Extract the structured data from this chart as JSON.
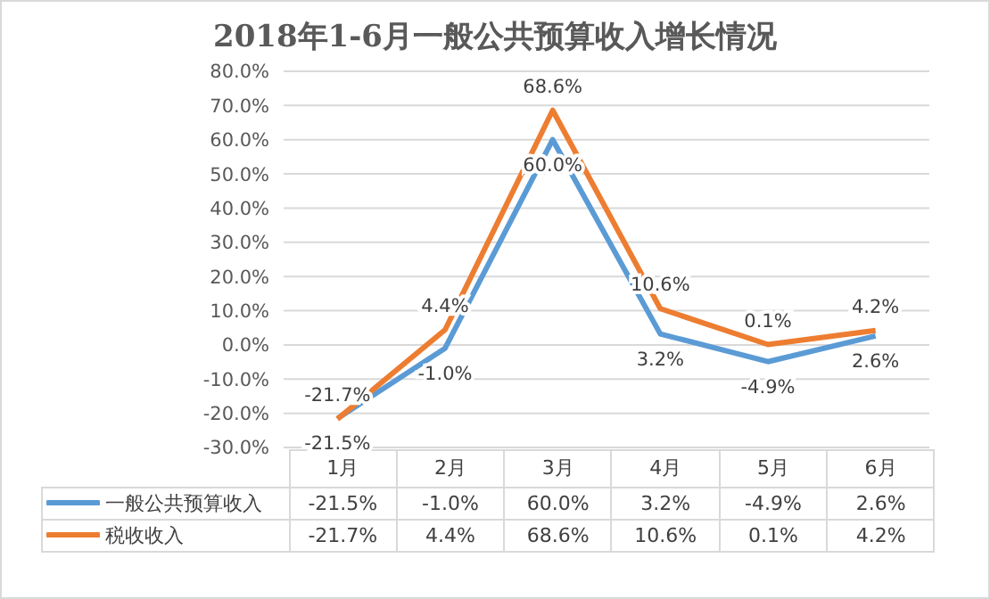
{
  "chart_data": {
    "type": "line",
    "title": "2018年1-6月一般公共预算收入增长情况",
    "categories": [
      "1月",
      "2月",
      "3月",
      "4月",
      "5月",
      "6月"
    ],
    "series": [
      {
        "name": "一般公共预算收入",
        "color": "#5b9bd5",
        "values": [
          -21.5,
          -1.0,
          60.0,
          3.2,
          -4.9,
          2.6
        ],
        "value_labels": [
          "-21.5%",
          "-1.0%",
          "60.0%",
          "3.2%",
          "-4.9%",
          "2.6%"
        ]
      },
      {
        "name": "税收收入",
        "color": "#ed7d31",
        "values": [
          -21.7,
          4.4,
          68.6,
          10.6,
          0.1,
          4.2
        ],
        "value_labels": [
          "-21.7%",
          "4.4%",
          "68.6%",
          "10.6%",
          "0.1%",
          "4.2%"
        ]
      }
    ],
    "ylim": [
      -30,
      80
    ],
    "yticks": [
      {
        "value": -30,
        "label": "-30.0%"
      },
      {
        "value": -20,
        "label": "-20.0%"
      },
      {
        "value": -10,
        "label": "-10.0%"
      },
      {
        "value": 0,
        "label": "0.0%"
      },
      {
        "value": 10,
        "label": "10.0%"
      },
      {
        "value": 20,
        "label": "20.0%"
      },
      {
        "value": 30,
        "label": "30.0%"
      },
      {
        "value": 40,
        "label": "40.0%"
      },
      {
        "value": 50,
        "label": "50.0%"
      },
      {
        "value": 60,
        "label": "60.0%"
      },
      {
        "value": 70,
        "label": "70.0%"
      },
      {
        "value": 80,
        "label": "80.0%"
      }
    ],
    "grid": "y",
    "legend": "bottom",
    "marker": "none",
    "line_style": "solid"
  }
}
